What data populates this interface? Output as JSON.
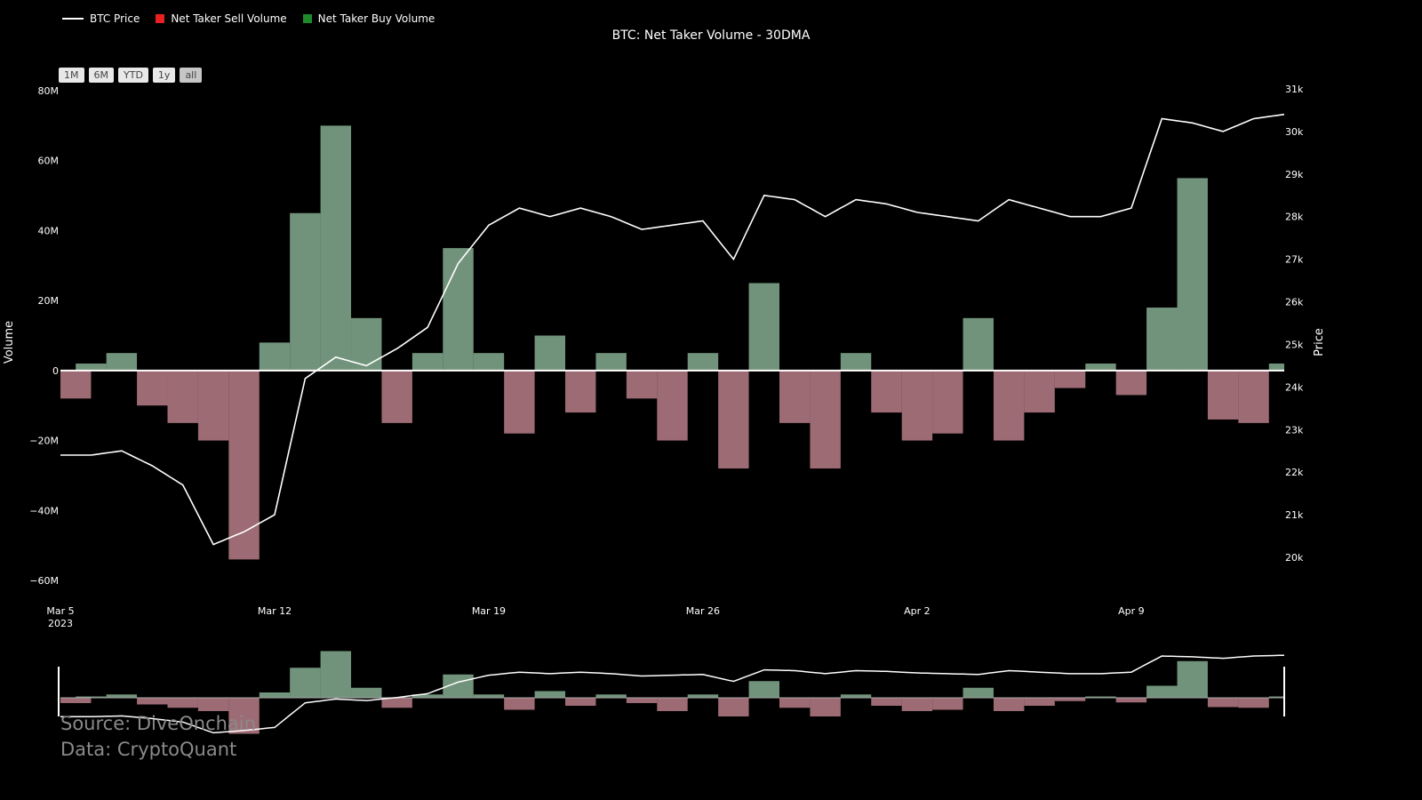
{
  "title": "BTC: Net Taker Volume - 30DMA",
  "legend": {
    "price": "BTC Price",
    "sell": "Net Taker Sell Volume",
    "buy": "Net Taker Buy Volume"
  },
  "range_buttons": [
    "1M",
    "6M",
    "YTD",
    "1y",
    "all"
  ],
  "source_lines": [
    "Source: DiveOnchain",
    "Data: CryptoQuant"
  ],
  "colors": {
    "sell": "#e06070",
    "sell_bar": "#b97e88",
    "buy": "#6a9a78",
    "buy_bar": "#86ad90",
    "price": "#ffffff",
    "sell_legend": "#e82020",
    "buy_legend": "#1f8a2c"
  },
  "chart_data": {
    "type": "bar",
    "xlabel": "",
    "ylabel": "Volume",
    "y2label": "Price",
    "ylim": [
      -60000000,
      80000000
    ],
    "y2_range": [
      20000,
      31000
    ],
    "x_range": [
      "2023-03-05",
      "2023-04-14"
    ],
    "yticks": [
      {
        "v": 80000000,
        "l": "80M"
      },
      {
        "v": 60000000,
        "l": "60M"
      },
      {
        "v": 40000000,
        "l": "40M"
      },
      {
        "v": 20000000,
        "l": "20M"
      },
      {
        "v": 0,
        "l": "0"
      },
      {
        "v": -20000000,
        "l": "−20M"
      },
      {
        "v": -40000000,
        "l": "−40M"
      },
      {
        "v": -60000000,
        "l": "−60M"
      }
    ],
    "y2ticks": [
      "31k",
      "30k",
      "29k",
      "28k",
      "27k",
      "26k",
      "25k",
      "24k",
      "23k",
      "22k",
      "21k",
      "20k"
    ],
    "xticks": [
      {
        "date": "2023-03-05",
        "label": "Mar 5",
        "sub": "2023"
      },
      {
        "date": "2023-03-12",
        "label": "Mar 12",
        "sub": ""
      },
      {
        "date": "2023-03-19",
        "label": "Mar 19",
        "sub": ""
      },
      {
        "date": "2023-03-26",
        "label": "Mar 26",
        "sub": ""
      },
      {
        "date": "2023-04-02",
        "label": "Apr 2",
        "sub": ""
      },
      {
        "date": "2023-04-09",
        "label": "Apr 9",
        "sub": ""
      }
    ],
    "volume_series": {
      "name": "Net Taker Volume (30DMA)",
      "x": [
        "2023-03-05",
        "2023-03-06",
        "2023-03-07",
        "2023-03-08",
        "2023-03-09",
        "2023-03-10",
        "2023-03-11",
        "2023-03-12",
        "2023-03-13",
        "2023-03-14",
        "2023-03-15",
        "2023-03-16",
        "2023-03-17",
        "2023-03-18",
        "2023-03-19",
        "2023-03-20",
        "2023-03-21",
        "2023-03-22",
        "2023-03-23",
        "2023-03-24",
        "2023-03-25",
        "2023-03-26",
        "2023-03-27",
        "2023-03-28",
        "2023-03-29",
        "2023-03-30",
        "2023-03-31",
        "2023-04-01",
        "2023-04-02",
        "2023-04-03",
        "2023-04-04",
        "2023-04-05",
        "2023-04-06",
        "2023-04-07",
        "2023-04-08",
        "2023-04-09",
        "2023-04-10",
        "2023-04-11",
        "2023-04-12",
        "2023-04-13",
        "2023-04-14"
      ],
      "values": [
        -8000000,
        2000000,
        5000000,
        -10000000,
        -15000000,
        -20000000,
        -54000000,
        8000000,
        45000000,
        70000000,
        15000000,
        -15000000,
        5000000,
        35000000,
        5000000,
        -18000000,
        10000000,
        -12000000,
        5000000,
        -8000000,
        -20000000,
        5000000,
        -28000000,
        25000000,
        -15000000,
        -28000000,
        5000000,
        -12000000,
        -20000000,
        -18000000,
        15000000,
        -20000000,
        -12000000,
        -5000000,
        2000000,
        -7000000,
        18000000,
        55000000,
        -14000000,
        -15000000,
        2000000
      ]
    },
    "price_series": {
      "name": "BTC Price",
      "x": [
        "2023-03-05",
        "2023-03-06",
        "2023-03-07",
        "2023-03-08",
        "2023-03-09",
        "2023-03-10",
        "2023-03-11",
        "2023-03-12",
        "2023-03-13",
        "2023-03-14",
        "2023-03-15",
        "2023-03-16",
        "2023-03-17",
        "2023-03-18",
        "2023-03-19",
        "2023-03-20",
        "2023-03-21",
        "2023-03-22",
        "2023-03-23",
        "2023-03-24",
        "2023-03-25",
        "2023-03-26",
        "2023-03-27",
        "2023-03-28",
        "2023-03-29",
        "2023-03-30",
        "2023-03-31",
        "2023-04-01",
        "2023-04-02",
        "2023-04-03",
        "2023-04-04",
        "2023-04-05",
        "2023-04-06",
        "2023-04-07",
        "2023-04-08",
        "2023-04-09",
        "2023-04-10",
        "2023-04-11",
        "2023-04-12",
        "2023-04-13",
        "2023-04-14"
      ],
      "values": [
        22400,
        22400,
        22500,
        22150,
        21700,
        20300,
        20600,
        21000,
        24200,
        24700,
        24500,
        24900,
        25400,
        26900,
        27800,
        28200,
        28000,
        28200,
        28000,
        27700,
        27800,
        27900,
        27000,
        28500,
        28400,
        28000,
        28400,
        28300,
        28100,
        28000,
        27900,
        28400,
        28200,
        28000,
        28000,
        28200,
        30300,
        30200,
        30000,
        30300,
        30400
      ]
    }
  }
}
